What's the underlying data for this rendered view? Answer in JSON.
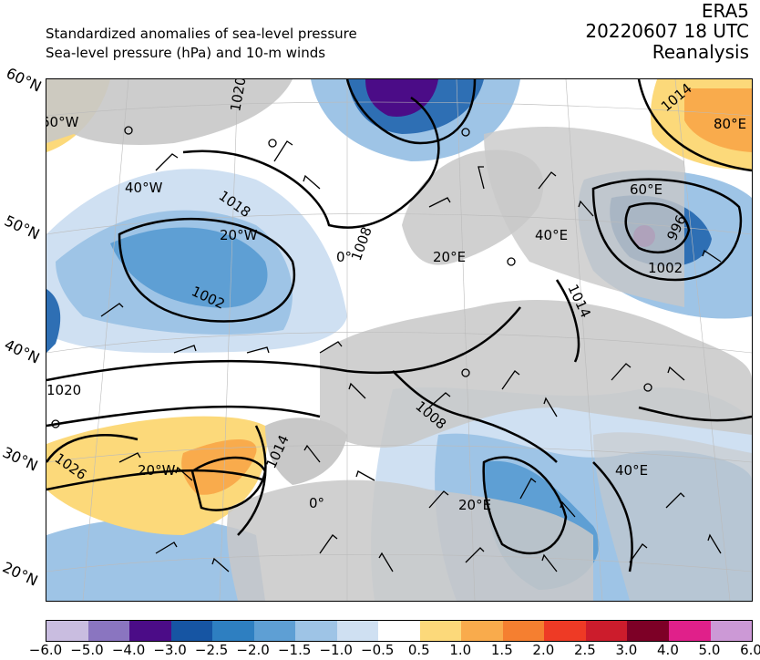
{
  "header": {
    "subtitle_1": "Standardized anomalies of sea-level pressure",
    "subtitle_2": "Sea-level pressure (hPa) and 10-m winds",
    "dataset": "ERA5",
    "datetime": "20220607 18 UTC",
    "product": "Reanalysis"
  },
  "map": {
    "lat_labels": [
      "60°N",
      "50°N",
      "40°N",
      "30°N",
      "20°N"
    ],
    "lon_labels_north": [
      "60°W",
      "40°W",
      "20°W",
      "0°",
      "20°E",
      "40°E",
      "60°E",
      "80°E"
    ],
    "lon_labels_south": [
      "20°W",
      "0°",
      "20°E",
      "40°E"
    ],
    "isobar_labels": [
      "1020",
      "1018",
      "1008",
      "1002",
      "1014",
      "996",
      "1002",
      "1014",
      "1020",
      "1026",
      "1014",
      "1008"
    ],
    "colors": {
      "land": "#c8c8c8",
      "ocean": "#ffffff",
      "neg_light": "#cfe0f2",
      "neg_mid": "#9ec4e6",
      "neg_strong": "#5e9fd4",
      "neg_deep": "#2e6fb4",
      "neg_extreme": "#4b0c87",
      "pos_light": "#fcd97a",
      "pos_mid": "#f9ab4c",
      "pos_strong": "#f57f30"
    }
  },
  "colorbar": {
    "ticks": [
      "−6.0",
      "−5.0",
      "−4.0",
      "−3.0",
      "−2.5",
      "−2.0",
      "−1.5",
      "−1.0",
      "−0.5",
      "0.5",
      "1.0",
      "1.5",
      "2.0",
      "2.5",
      "3.0",
      "4.0",
      "5.0",
      "6.0"
    ],
    "colors": [
      "#c9bde0",
      "#8a75c0",
      "#4b0c87",
      "#1655a3",
      "#2e7fc1",
      "#5e9fd4",
      "#9ec4e6",
      "#cfe0f2",
      "#ffffff",
      "#fcd97a",
      "#f9ab4c",
      "#f57f30",
      "#ee3a25",
      "#cc1c2c",
      "#7d0026",
      "#e0208a",
      "#cc99d6"
    ]
  }
}
